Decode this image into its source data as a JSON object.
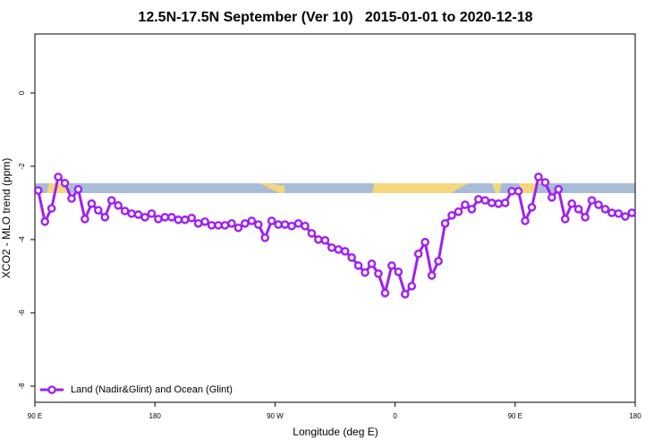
{
  "chart_data": {
    "type": "line",
    "title": "12.5N-17.5N September (Ver 10)   2015-01-01 to 2020-12-18",
    "xlabel": "Longitude (deg E)",
    "ylabel": "XCO2 - MLO trend (ppm)",
    "xlim": [
      90,
      540
    ],
    "ylim": [
      -8.44,
      1.61
    ],
    "xticks": [
      {
        "value": 90,
        "label": "90 E"
      },
      {
        "value": 180,
        "label": "180"
      },
      {
        "value": 270,
        "label": "90 W"
      },
      {
        "value": 360,
        "label": "0"
      },
      {
        "value": 450,
        "label": "90 E"
      },
      {
        "value": 540,
        "label": "180"
      }
    ],
    "yticks": [
      0,
      -2,
      -4,
      -6,
      -8
    ],
    "legend": "lower left",
    "x": [
      92.5,
      97.5,
      102.5,
      107.5,
      112.5,
      117.5,
      122.5,
      127.5,
      132.5,
      137.5,
      142.5,
      147.5,
      152.5,
      157.5,
      162.5,
      167.5,
      172.5,
      177.5,
      182.5,
      187.5,
      192.5,
      197.5,
      202.5,
      207.5,
      212.5,
      217.5,
      222.5,
      227.5,
      232.5,
      237.5,
      242.5,
      247.5,
      252.5,
      257.5,
      262.5,
      267.5,
      272.5,
      277.5,
      282.5,
      287.5,
      292.5,
      297.5,
      302.5,
      307.5,
      312.5,
      317.5,
      322.5,
      327.5,
      332.5,
      337.5,
      342.5,
      347.5,
      352.5,
      357.5,
      362.5,
      367.5,
      372.5,
      377.5,
      382.5,
      387.5,
      392.5,
      397.5,
      402.5,
      407.5,
      412.5,
      417.5,
      422.5,
      427.5,
      432.5,
      437.5,
      442.5,
      447.5,
      452.5,
      457.5,
      462.5,
      467.5,
      472.5,
      477.5,
      482.5,
      487.5,
      492.5,
      497.5,
      502.5,
      507.5,
      512.5,
      517.5,
      522.5,
      527.5,
      532.5,
      537.5
    ],
    "series": [
      {
        "name": "Land (Nadir&Glint) and Ocean (Glint)",
        "color": "#a020f0",
        "values": [
          -2.66,
          -3.51,
          -3.15,
          -2.29,
          -2.46,
          -2.88,
          -2.63,
          -3.44,
          -3.02,
          -3.2,
          -3.39,
          -2.93,
          -3.07,
          -3.22,
          -3.29,
          -3.32,
          -3.39,
          -3.29,
          -3.44,
          -3.39,
          -3.39,
          -3.46,
          -3.46,
          -3.41,
          -3.56,
          -3.51,
          -3.61,
          -3.61,
          -3.61,
          -3.56,
          -3.68,
          -3.56,
          -3.49,
          -3.59,
          -3.95,
          -3.49,
          -3.59,
          -3.59,
          -3.63,
          -3.56,
          -3.63,
          -3.83,
          -4.0,
          -4.02,
          -4.22,
          -4.27,
          -4.32,
          -4.49,
          -4.71,
          -4.9,
          -4.66,
          -4.93,
          -5.46,
          -4.71,
          -4.88,
          -5.49,
          -5.27,
          -4.39,
          -4.07,
          -4.98,
          -4.59,
          -3.56,
          -3.34,
          -3.24,
          -3.05,
          -3.17,
          -2.9,
          -2.93,
          -3.0,
          -3.02,
          -3.0,
          -2.68,
          -2.68,
          -3.49,
          -3.12,
          -2.29,
          -2.44,
          -2.85,
          -2.63,
          -3.44,
          -3.02,
          -3.17,
          -3.39,
          -2.93,
          -3.05,
          -3.17,
          -3.27,
          -3.29,
          -3.37,
          -3.27
        ]
      }
    ]
  }
}
